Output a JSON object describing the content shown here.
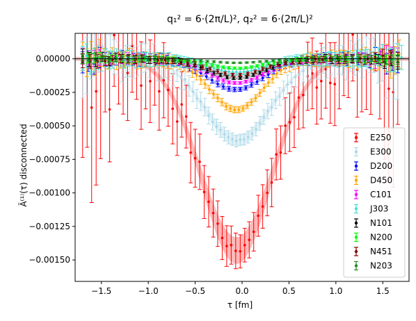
{
  "chart_data": {
    "type": "scatter",
    "title": "q₁² = 6·(2π/L)²,  q₂² = 6·(2π/L)²",
    "xlabel": "τ [fm]",
    "ylabel": "Ã⁽¹⁾(τ) disconnected",
    "xlim": [
      -1.78,
      1.78
    ],
    "ylim": [
      -0.00166,
      0.00019
    ],
    "xticks": [
      -1.5,
      -1.0,
      -0.5,
      0.0,
      0.5,
      1.0,
      1.5
    ],
    "xtick_labels": [
      "−1.5",
      "−1.0",
      "−0.5",
      "0.0",
      "0.5",
      "1.0",
      "1.5"
    ],
    "yticks": [
      0.0,
      -0.00025,
      -0.0005,
      -0.00075,
      -0.001,
      -0.00125,
      -0.0015
    ],
    "ytick_labels": [
      "0.00000",
      "−0.00025",
      "−0.00050",
      "−0.00075",
      "−0.00100",
      "−0.00125",
      "−0.00150"
    ],
    "grid": false,
    "legend_position": "lower-right",
    "zero_line": true,
    "series": [
      {
        "name": "E250",
        "color": "#ff0000",
        "band_color": "#ff8080",
        "min": -0.00143,
        "sigma": 0.38,
        "center": -0.06,
        "x_step": 0.048,
        "x_start": -1.7,
        "x_end": 1.7,
        "err_base": 0.00012,
        "noise": 0.00035
      },
      {
        "name": "E300",
        "color": "#add8e6",
        "band_color": "#c8e6f0",
        "min": -0.00061,
        "sigma": 0.35,
        "center": -0.05,
        "x_step": 0.042,
        "x_start": -1.7,
        "x_end": 1.7,
        "err_base": 4e-05,
        "noise": 8e-05
      },
      {
        "name": "D200",
        "color": "#0000ff",
        "band_color": "#7f7fff",
        "min": -0.00023,
        "sigma": 0.3,
        "center": -0.07,
        "x_step": 0.06,
        "x_start": -1.7,
        "x_end": 1.7,
        "err_base": 1.5e-05,
        "noise": 3e-05
      },
      {
        "name": "D450",
        "color": "#ffa500",
        "band_color": "#ffd280",
        "min": -0.00038,
        "sigma": 0.28,
        "center": -0.06,
        "x_step": 0.045,
        "x_start": -1.7,
        "x_end": 1.7,
        "err_base": 2e-05,
        "noise": 4e-05
      },
      {
        "name": "C101",
        "color": "#ff00ff",
        "band_color": "#ff80ff",
        "min": -0.00018,
        "sigma": 0.3,
        "center": -0.06,
        "x_step": 0.06,
        "x_start": -1.7,
        "x_end": 1.7,
        "err_base": 1e-05,
        "noise": 3e-05
      },
      {
        "name": "J303",
        "color": "#40e0d0",
        "band_color": "#a0f0e8",
        "min": -0.0001,
        "sigma": 0.3,
        "center": -0.06,
        "x_step": 0.04,
        "x_start": -1.7,
        "x_end": 1.7,
        "err_base": 2e-05,
        "noise": 2e-05
      },
      {
        "name": "N101",
        "color": "#000000",
        "band_color": "#808080",
        "min": -0.000145,
        "sigma": 0.3,
        "center": -0.06,
        "x_step": 0.07,
        "x_start": -1.7,
        "x_end": 1.7,
        "err_base": 1e-05,
        "noise": 2e-05
      },
      {
        "name": "N200",
        "color": "#00ff00",
        "band_color": "#80ff80",
        "min": -7e-05,
        "sigma": 0.3,
        "center": -0.06,
        "x_step": 0.06,
        "x_start": -1.7,
        "x_end": 1.7,
        "err_base": 8e-06,
        "noise": 1e-05
      },
      {
        "name": "N451",
        "color": "#800000",
        "band_color": "#c08080",
        "min": -0.00012,
        "sigma": 0.3,
        "center": -0.06,
        "x_step": 0.08,
        "x_start": -1.7,
        "x_end": 1.7,
        "err_base": 1e-05,
        "noise": 2e-05
      },
      {
        "name": "N203",
        "color": "#228b22",
        "band_color": "#90c590",
        "min": -3e-05,
        "sigma": 0.3,
        "center": -0.06,
        "x_step": 0.07,
        "x_start": -1.7,
        "x_end": 1.7,
        "err_base": 5e-06,
        "noise": 8e-06
      }
    ]
  }
}
